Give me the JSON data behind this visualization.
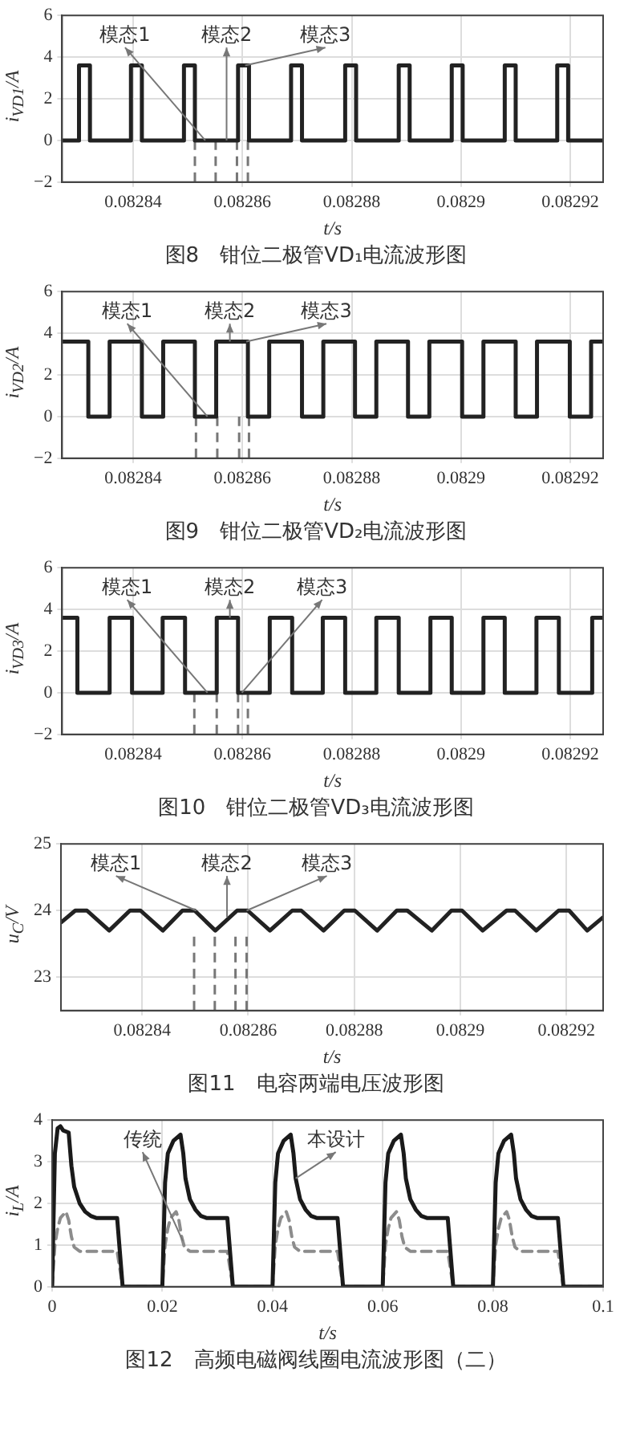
{
  "chart_data": [
    {
      "type": "line",
      "title": "图8　钳位二极管VD₁电流波形图",
      "xlabel": "t/s",
      "ylabel": "i$_{VD1}$/A",
      "color": "#222222",
      "grid": true,
      "x": [
        0.082827,
        0.0828301,
        0.0828301,
        0.0828321,
        0.0828321,
        0.0828396,
        0.0828396,
        0.0828416,
        0.0828416,
        0.0828493,
        0.0828493,
        0.0828513,
        0.0828513,
        0.0828592,
        0.0828592,
        0.0828612,
        0.0828612,
        0.0828689,
        0.0828689,
        0.0828709,
        0.0828709,
        0.0828788,
        0.0828788,
        0.0828808,
        0.0828808,
        0.0828886,
        0.0828886,
        0.0828906,
        0.0828906,
        0.0828983,
        0.0828983,
        0.0829003,
        0.0829003,
        0.082908,
        0.082908,
        0.08291,
        0.08291,
        0.0829176,
        0.0829176,
        0.0829196,
        0.0829196,
        0.082926
      ],
      "values": [
        0,
        0,
        3.6,
        3.6,
        0,
        0,
        3.6,
        3.6,
        0,
        0,
        3.6,
        3.6,
        0,
        0,
        3.6,
        3.6,
        0,
        0,
        3.6,
        3.6,
        0,
        0,
        3.6,
        3.6,
        0,
        0,
        3.6,
        3.6,
        0,
        0,
        3.6,
        3.6,
        0,
        0,
        3.6,
        3.6,
        0,
        0,
        3.6,
        3.6,
        0,
        0
      ],
      "xlim": [
        0.082827,
        0.082926
      ],
      "xticks": [
        0.08284,
        0.08286,
        0.08288,
        0.0829,
        0.08292
      ],
      "ylim": [
        -2,
        6
      ],
      "yticks": [
        -2,
        0,
        2,
        4,
        6
      ],
      "ref_lines": [
        {
          "axis": "x",
          "value": 0.0828513,
          "color": "#777777",
          "line_style": "dashed"
        },
        {
          "axis": "x",
          "value": 0.0828551,
          "color": "#777777",
          "line_style": "dashed"
        },
        {
          "axis": "x",
          "value": 0.082859,
          "color": "#777777",
          "line_style": "dashed"
        },
        {
          "axis": "x",
          "value": 0.082861,
          "color": "#777777",
          "line_style": "dashed"
        }
      ],
      "annotations": [
        {
          "text": "模态1",
          "x": 0.0828532,
          "y": 0
        },
        {
          "text": "模态2",
          "x": 0.0828571,
          "y": 0
        },
        {
          "text": "模态3",
          "x": 0.0828605,
          "y": 3.6
        }
      ]
    },
    {
      "type": "line",
      "title": "图9　钳位二极管VD₂电流波形图",
      "xlabel": "t/s",
      "ylabel": "i$_{VD2}$/A",
      "color": "#222222",
      "grid": true,
      "x": [
        0.082827,
        0.0828318,
        0.0828318,
        0.0828357,
        0.0828357,
        0.0828416,
        0.0828416,
        0.0828455,
        0.0828455,
        0.0828513,
        0.0828513,
        0.0828552,
        0.0828552,
        0.082861,
        0.082861,
        0.0828649,
        0.0828649,
        0.0828709,
        0.0828709,
        0.0828748,
        0.0828748,
        0.0828806,
        0.0828806,
        0.0828845,
        0.0828845,
        0.0828903,
        0.0828903,
        0.0828942,
        0.0828942,
        0.0829002,
        0.0829002,
        0.0829041,
        0.0829041,
        0.08291,
        0.08291,
        0.0829139,
        0.0829139,
        0.0829199,
        0.0829199,
        0.0829238,
        0.0829238,
        0.082926
      ],
      "values": [
        3.6,
        3.6,
        0,
        0,
        3.6,
        3.6,
        0,
        0,
        3.6,
        3.6,
        0,
        0,
        3.6,
        3.6,
        0,
        0,
        3.6,
        3.6,
        0,
        0,
        3.6,
        3.6,
        0,
        0,
        3.6,
        3.6,
        0,
        0,
        3.6,
        3.6,
        0,
        0,
        3.6,
        3.6,
        0,
        0,
        3.6,
        3.6,
        0,
        0,
        3.6,
        3.6
      ],
      "xlim": [
        0.082827,
        0.082926
      ],
      "xticks": [
        0.08284,
        0.08286,
        0.08288,
        0.0829,
        0.08292
      ],
      "ylim": [
        -2,
        6
      ],
      "yticks": [
        -2,
        0,
        2,
        4,
        6
      ],
      "ref_lines": [
        {
          "axis": "x",
          "value": 0.0828515,
          "color": "#777777",
          "line_style": "dashed"
        },
        {
          "axis": "x",
          "value": 0.0828554,
          "color": "#777777",
          "line_style": "dashed"
        },
        {
          "axis": "x",
          "value": 0.0828594,
          "color": "#777777",
          "line_style": "dashed"
        },
        {
          "axis": "x",
          "value": 0.0828612,
          "color": "#777777",
          "line_style": "dashed"
        }
      ],
      "annotations": [
        {
          "text": "模态1",
          "x": 0.0828536,
          "y": 0
        },
        {
          "text": "模态2",
          "x": 0.0828577,
          "y": 3.6
        },
        {
          "text": "模态3",
          "x": 0.0828607,
          "y": 3.6
        }
      ]
    },
    {
      "type": "line",
      "title": "图10　钳位二极管VD₃电流波形图",
      "xlabel": "t/s",
      "ylabel": "i$_{VD3}$/A",
      "color": "#222222",
      "grid": true,
      "x": [
        0.082827,
        0.0828298,
        0.0828298,
        0.0828357,
        0.0828357,
        0.0828398,
        0.0828398,
        0.0828454,
        0.0828454,
        0.0828495,
        0.0828495,
        0.0828553,
        0.0828553,
        0.0828592,
        0.0828592,
        0.082865,
        0.082865,
        0.0828691,
        0.0828691,
        0.0828747,
        0.0828747,
        0.0828788,
        0.0828788,
        0.0828845,
        0.0828845,
        0.0828886,
        0.0828886,
        0.0828944,
        0.0828944,
        0.0828983,
        0.0828983,
        0.0829041,
        0.0829041,
        0.082908,
        0.082908,
        0.0829138,
        0.0829138,
        0.0829179,
        0.0829179,
        0.082924,
        0.082924,
        0.082926
      ],
      "values": [
        3.6,
        3.6,
        0,
        0,
        3.6,
        3.6,
        0,
        0,
        3.6,
        3.6,
        0,
        0,
        3.6,
        3.6,
        0,
        0,
        3.6,
        3.6,
        0,
        0,
        3.6,
        3.6,
        0,
        0,
        3.6,
        3.6,
        0,
        0,
        3.6,
        3.6,
        0,
        0,
        3.6,
        3.6,
        0,
        0,
        3.6,
        3.6,
        0,
        0,
        3.6,
        3.6
      ],
      "xlim": [
        0.082827,
        0.082926
      ],
      "xticks": [
        0.08284,
        0.08286,
        0.08288,
        0.0829,
        0.08292
      ],
      "ylim": [
        -2,
        6
      ],
      "yticks": [
        -2,
        0,
        2,
        4,
        6
      ],
      "ref_lines": [
        {
          "axis": "x",
          "value": 0.0828512,
          "color": "#777777",
          "line_style": "dashed"
        },
        {
          "axis": "x",
          "value": 0.0828553,
          "color": "#777777",
          "line_style": "dashed"
        },
        {
          "axis": "x",
          "value": 0.0828592,
          "color": "#777777",
          "line_style": "dashed"
        },
        {
          "axis": "x",
          "value": 0.082861,
          "color": "#777777",
          "line_style": "dashed"
        }
      ],
      "annotations": [
        {
          "text": "模态1",
          "x": 0.0828536,
          "y": 0
        },
        {
          "text": "模态2",
          "x": 0.0828577,
          "y": 3.6
        },
        {
          "text": "模态3",
          "x": 0.0828599,
          "y": 0
        }
      ]
    },
    {
      "type": "line",
      "title": "图11　电容两端电压波形图",
      "xlabel": "t/s",
      "ylabel": "u$_{C}$/V",
      "color": "#222222",
      "grid": true,
      "x": [
        0.0828247,
        0.0828274,
        0.0828296,
        0.0828338,
        0.0828377,
        0.0828397,
        0.0828439,
        0.0828476,
        0.0828499,
        0.0828538,
        0.0828579,
        0.0828599,
        0.0828641,
        0.0828683,
        0.08287,
        0.0828742,
        0.0828781,
        0.0828801,
        0.0828843,
        0.082888,
        0.08289,
        0.0828946,
        0.0828983,
        0.0829003,
        0.0829042,
        0.0829087,
        0.0829103,
        0.0829143,
        0.0829185,
        0.0829205,
        0.0829239,
        0.0829269
      ],
      "values": [
        23.82,
        24,
        24,
        23.7,
        24,
        24,
        23.7,
        24,
        24,
        23.7,
        24,
        24,
        23.7,
        24,
        24,
        23.7,
        24,
        24,
        23.7,
        24,
        24,
        23.7,
        24,
        24,
        23.7,
        24,
        24,
        23.7,
        24,
        24,
        23.7,
        23.9
      ],
      "xlim": [
        0.0828247,
        0.0829269
      ],
      "xticks": [
        0.08284,
        0.08286,
        0.08288,
        0.0829,
        0.08292
      ],
      "ylim": [
        22.5,
        25
      ],
      "yticks": [
        23,
        24,
        25
      ],
      "ref_lines": [
        {
          "axis": "x",
          "value": 0.0828498,
          "color": "#777777",
          "line_style": "dashed"
        },
        {
          "axis": "x",
          "value": 0.0828537,
          "color": "#777777",
          "line_style": "dashed"
        },
        {
          "axis": "x",
          "value": 0.0828576,
          "color": "#777777",
          "line_style": "dashed"
        },
        {
          "axis": "x",
          "value": 0.0828597,
          "color": "#777777",
          "line_style": "dashed"
        }
      ],
      "annotations": [
        {
          "text": "模态1",
          "x": 0.0828502,
          "y": 24
        },
        {
          "text": "模态2",
          "x": 0.082856,
          "y": 23.9
        },
        {
          "text": "模态3",
          "x": 0.0828597,
          "y": 24
        }
      ]
    },
    {
      "type": "line",
      "title": "图12　高频电磁阀线圈电流波形图（二）",
      "xlabel": "t/s",
      "ylabel": "i$_{L}$/A",
      "grid": true,
      "xlim": [
        0,
        0.1
      ],
      "xticks": [
        0,
        0.02,
        0.04,
        0.06,
        0.08,
        0.1
      ],
      "ylim": [
        0,
        4
      ],
      "yticks": [
        0,
        1,
        2,
        3,
        4
      ],
      "series": [
        {
          "color": "#1a1a1a",
          "line_style": "solid",
          "x": [
            0,
            0.0005,
            0.001,
            0.0015,
            0.002,
            0.003,
            0.0035,
            0.004,
            0.005,
            0.006,
            0.007,
            0.008,
            0.0118,
            0.0128,
            0.02,
            0.0205,
            0.021,
            0.022,
            0.0233,
            0.0238,
            0.0242,
            0.025,
            0.026,
            0.027,
            0.028,
            0.0318,
            0.0328,
            0.04,
            0.0405,
            0.041,
            0.042,
            0.0433,
            0.0438,
            0.0442,
            0.045,
            0.046,
            0.047,
            0.048,
            0.0518,
            0.0528,
            0.06,
            0.0605,
            0.061,
            0.062,
            0.0633,
            0.0638,
            0.0642,
            0.065,
            0.066,
            0.067,
            0.068,
            0.0718,
            0.0728,
            0.08,
            0.0805,
            0.081,
            0.082,
            0.0833,
            0.0838,
            0.0842,
            0.085,
            0.086,
            0.087,
            0.088,
            0.0918,
            0.0928,
            0.1
          ],
          "values": [
            0,
            3.2,
            3.8,
            3.85,
            3.75,
            3.7,
            2.9,
            2.4,
            2.0,
            1.8,
            1.7,
            1.65,
            1.65,
            0,
            0,
            2.5,
            3.2,
            3.5,
            3.65,
            3.2,
            2.6,
            2.1,
            1.85,
            1.7,
            1.65,
            1.65,
            0,
            0,
            2.5,
            3.2,
            3.5,
            3.65,
            3.2,
            2.6,
            2.1,
            1.85,
            1.7,
            1.65,
            1.65,
            0,
            0,
            2.5,
            3.2,
            3.5,
            3.65,
            3.2,
            2.6,
            2.1,
            1.85,
            1.7,
            1.65,
            1.65,
            0,
            0,
            2.5,
            3.2,
            3.5,
            3.65,
            3.2,
            2.6,
            2.1,
            1.85,
            1.7,
            1.65,
            1.65,
            0,
            0
          ]
        },
        {
          "color": "#8c8c8c",
          "line_style": "dashed",
          "x": [
            0,
            0.0005,
            0.001,
            0.0015,
            0.0025,
            0.003,
            0.0035,
            0.004,
            0.005,
            0.0118,
            0.0128,
            0.02,
            0.0205,
            0.021,
            0.0215,
            0.0225,
            0.023,
            0.0235,
            0.024,
            0.025,
            0.0318,
            0.0328,
            0.04,
            0.0405,
            0.041,
            0.0415,
            0.0425,
            0.043,
            0.0435,
            0.044,
            0.045,
            0.0518,
            0.0528,
            0.06,
            0.0605,
            0.061,
            0.0615,
            0.0625,
            0.063,
            0.0635,
            0.064,
            0.065,
            0.0718,
            0.0728,
            0.08,
            0.0805,
            0.081,
            0.0815,
            0.0825,
            0.083,
            0.0835,
            0.084,
            0.085,
            0.0918,
            0.0928,
            0.1
          ],
          "values": [
            0,
            1.0,
            1.4,
            1.65,
            1.8,
            1.6,
            1.2,
            0.95,
            0.85,
            0.85,
            0,
            0,
            1.0,
            1.4,
            1.65,
            1.8,
            1.6,
            1.2,
            0.95,
            0.85,
            0.85,
            0,
            0,
            1.0,
            1.4,
            1.65,
            1.8,
            1.6,
            1.2,
            0.95,
            0.85,
            0.85,
            0,
            0,
            1.0,
            1.4,
            1.65,
            1.8,
            1.6,
            1.2,
            0.95,
            0.85,
            0.85,
            0,
            0,
            1.0,
            1.4,
            1.65,
            1.8,
            1.6,
            1.2,
            0.95,
            0.85,
            0.85,
            0,
            0
          ]
        }
      ],
      "annotations": [
        {
          "text": "传统",
          "x": 0.0237,
          "y": 1.1
        },
        {
          "text": "本设计",
          "x": 0.0442,
          "y": 2.6
        }
      ]
    }
  ]
}
